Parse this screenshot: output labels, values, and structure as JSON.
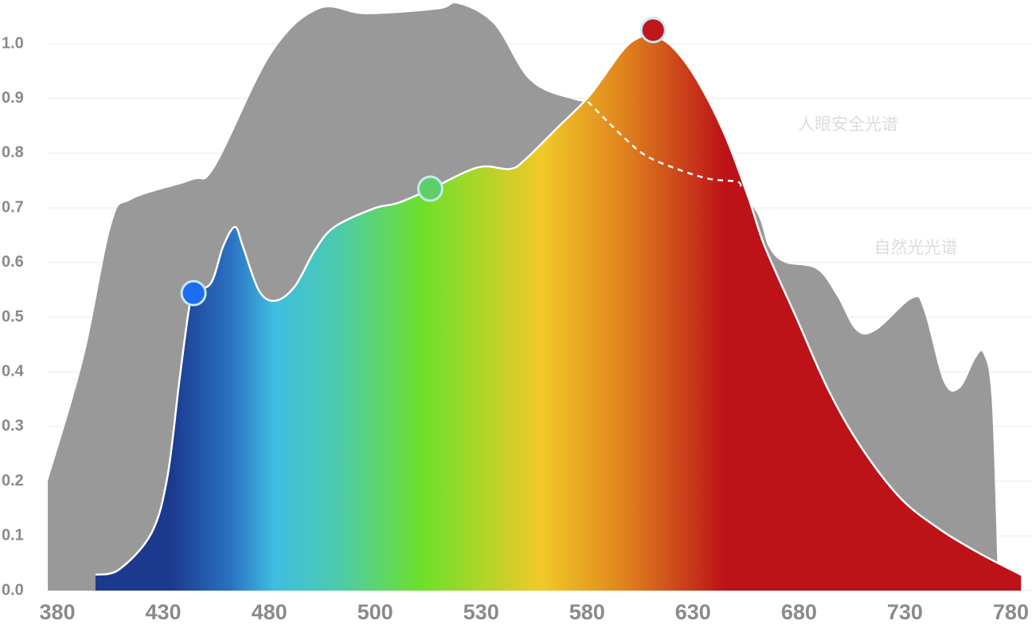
{
  "chart_data": {
    "type": "area",
    "xlim": [
      375.5,
      784.8
    ],
    "xticks": [
      380,
      430,
      480,
      500,
      530,
      580,
      630,
      680,
      730,
      780
    ],
    "ylim": [
      0,
      1.08
    ],
    "yticks": [
      {
        "value": 0,
        "label": "0.0"
      },
      0.1,
      0.2,
      0.3,
      0.4,
      0.5,
      0.6,
      0.7,
      0.8,
      0.9,
      {
        "value": 1,
        "label": "1.0"
      }
    ],
    "grid": true,
    "series": [
      {
        "name": "自然光光谱",
        "color": "#999999",
        "x": [
          375.5,
          392.4,
          405.6,
          415.0,
          443.2,
          454.4,
          480.3,
          489.3,
          498.3,
          517.8,
          523.5,
          536.0,
          552.9,
          573.6,
          603.7,
          633.8,
          658.2,
          665.7,
          673.2,
          688.2,
          697.6,
          707.0,
          716.4,
          733.4,
          739.0,
          748.4,
          755.9,
          763.4,
          767.2,
          770.9,
          773.6
        ],
        "values": [
          0.2,
          0.425,
          0.67,
          0.715,
          0.75,
          0.775,
          0.98,
          1.063,
          1.054,
          1.063,
          1.073,
          1.036,
          0.934,
          0.898,
          0.876,
          0.789,
          0.702,
          0.629,
          0.6,
          0.588,
          0.541,
          0.476,
          0.476,
          0.534,
          0.512,
          0.381,
          0.37,
          0.425,
          0.432,
          0.352,
          0.054
        ]
      },
      {
        "name": "人眼安全光谱",
        "color": "gradient",
        "x": [
          398.0,
          409.3,
          424.4,
          431.9,
          437.5,
          442.0,
          444.3,
          452.6,
          458.2,
          463.8,
          467.6,
          475.1,
          481.1,
          484.8,
          488.6,
          492.3,
          499.8,
          506.5,
          515.6,
          529.1,
          543.5,
          551.0,
          566.1,
          581.1,
          596.2,
          603.7,
          611.2,
          620.6,
          631.9,
          645.1,
          656.4,
          663.9,
          678.9,
          693.9,
          708.9,
          727.7,
          746.5,
          765.3,
          784.8
        ],
        "values": [
          0.029,
          0.039,
          0.105,
          0.207,
          0.381,
          0.512,
          0.544,
          0.563,
          0.629,
          0.665,
          0.629,
          0.549,
          0.53,
          0.556,
          0.622,
          0.665,
          0.699,
          0.709,
          0.734,
          0.774,
          0.771,
          0.789,
          0.847,
          0.905,
          0.985,
          1.01,
          1.015,
          0.993,
          0.934,
          0.833,
          0.716,
          0.629,
          0.498,
          0.367,
          0.265,
          0.17,
          0.112,
          0.068,
          0.029
        ]
      }
    ],
    "gradient": [
      {
        "x": 433.8,
        "color": "#1b3a8e"
      },
      {
        "x": 462.0,
        "color": "#2b72c2"
      },
      {
        "x": 480.9,
        "color": "#3ebde2"
      },
      {
        "x": 492.3,
        "color": "#4ccab0"
      },
      {
        "x": 513.3,
        "color": "#6de02a"
      },
      {
        "x": 558.6,
        "color": "#f1c928"
      },
      {
        "x": 596.2,
        "color": "#e0861e"
      },
      {
        "x": 645.1,
        "color": "#bc1218"
      }
    ],
    "dashed_line": {
      "x": [
        580.4,
        596.2,
        607.5,
        622.5,
        637.6,
        650.7,
        652.6
      ],
      "values": [
        0.894,
        0.833,
        0.796,
        0.771,
        0.753,
        0.748,
        0.738
      ]
    },
    "markers": [
      {
        "x": 444.3,
        "value": 0.544,
        "color": "#1e6cf0"
      },
      {
        "x": 515.6,
        "value": 0.735,
        "color": "#5ccf6a"
      },
      {
        "x": 611.2,
        "value": 1.025,
        "color": "#c0161c"
      }
    ]
  }
}
